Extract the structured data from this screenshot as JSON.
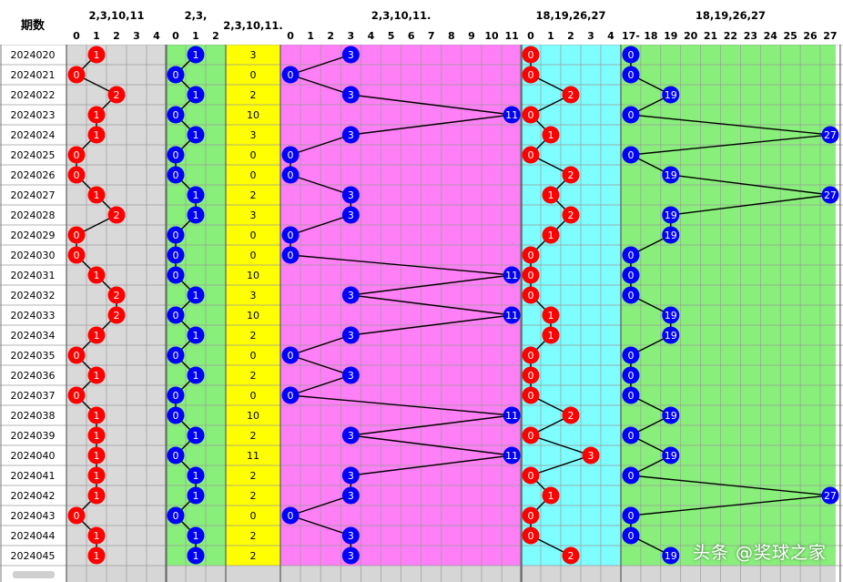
{
  "header": {
    "issue_label": "期数",
    "groups": [
      {
        "title": "2,3,10,11",
        "cols": [
          "0",
          "1",
          "2",
          "3",
          "4"
        ]
      },
      {
        "title": "2,3,",
        "cols": [
          "0",
          "1",
          "2"
        ]
      },
      {
        "title": "2,3,10,11.",
        "cols": []
      },
      {
        "title": "2,3,10,11.",
        "cols": [
          "0",
          "1",
          "2",
          "3",
          "4",
          "5",
          "6",
          "7",
          "8",
          "9",
          "10",
          "11"
        ]
      },
      {
        "title": "18,19,26,27",
        "cols": [
          "0",
          "1",
          "2",
          "3",
          "4"
        ]
      },
      {
        "title": "18,19,26,27",
        "cols": [
          "17-",
          "18",
          "19",
          "20",
          "21",
          "22",
          "23",
          "24",
          "25",
          "26",
          "27"
        ]
      }
    ]
  },
  "colors": {
    "grey": "#d9d9d9",
    "green": "#88f07a",
    "yellow": "#ffff00",
    "pink": "#ff7ff6",
    "cyan": "#7ffeff",
    "red_ball": "#ff0000",
    "blue_ball": "#0000ff"
  },
  "chart_data": {
    "type": "table",
    "issues": [
      "2024020",
      "2024021",
      "2024022",
      "2024023",
      "2024024",
      "2024025",
      "2024026",
      "2024027",
      "2024028",
      "2024029",
      "2024030",
      "2024031",
      "2024032",
      "2024033",
      "2024034",
      "2024035",
      "2024036",
      "2024037",
      "2024038",
      "2024039",
      "2024040",
      "2024041",
      "2024042",
      "2024043",
      "2024044",
      "2024045"
    ],
    "series": [
      {
        "name": "2,3,10,11",
        "values": [
          1,
          0,
          2,
          1,
          1,
          0,
          0,
          1,
          2,
          0,
          0,
          1,
          2,
          2,
          1,
          0,
          1,
          0,
          1,
          1,
          1,
          1,
          1,
          0,
          1,
          1
        ]
      },
      {
        "name": "2,3,",
        "values": [
          1,
          0,
          1,
          0,
          1,
          0,
          0,
          1,
          1,
          0,
          0,
          0,
          1,
          0,
          1,
          0,
          1,
          0,
          0,
          1,
          0,
          1,
          1,
          0,
          1,
          1
        ]
      },
      {
        "name": "2,3,10,11.",
        "values": [
          3,
          0,
          2,
          10,
          3,
          0,
          0,
          2,
          3,
          0,
          0,
          10,
          3,
          10,
          2,
          0,
          2,
          0,
          10,
          2,
          11,
          2,
          2,
          0,
          2,
          2
        ]
      },
      {
        "name": "2,3,10,11.",
        "values": [
          3,
          0,
          3,
          11,
          3,
          0,
          0,
          3,
          3,
          0,
          0,
          11,
          3,
          11,
          3,
          0,
          3,
          0,
          11,
          3,
          11,
          3,
          3,
          0,
          3,
          3
        ]
      },
      {
        "name": "18,19,26,27",
        "values": [
          0,
          0,
          2,
          0,
          1,
          0,
          2,
          1,
          2,
          1,
          0,
          0,
          0,
          1,
          1,
          0,
          0,
          0,
          2,
          0,
          3,
          0,
          1,
          0,
          0,
          2
        ]
      },
      {
        "name": "18,19,26,27",
        "values": [
          "0",
          "0",
          "19",
          "0",
          "27",
          "0",
          "19",
          "27",
          "19",
          "19",
          "0",
          "0",
          "0",
          "19",
          "19",
          "0",
          "0",
          "0",
          "19",
          "0",
          "19",
          "0",
          "27",
          "0",
          "0",
          "19"
        ]
      }
    ]
  },
  "watermark": "头条 @奖球之家"
}
